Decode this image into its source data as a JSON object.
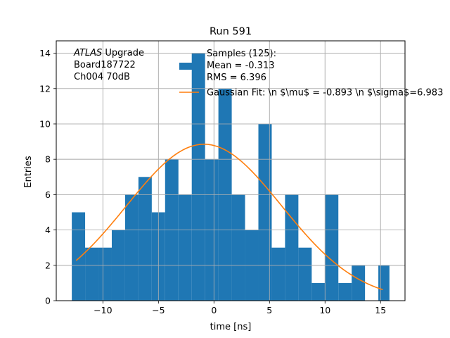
{
  "chart_data": {
    "type": "bar",
    "title": "Run 591",
    "xlabel": "time [ns]",
    "ylabel": "Entries",
    "xlim": [
      -14.2,
      17.2
    ],
    "ylim": [
      0,
      14.7
    ],
    "grid": true,
    "xticks": [
      -10,
      -5,
      0,
      5,
      10,
      15
    ],
    "yticks": [
      0,
      2,
      4,
      6,
      8,
      10,
      12,
      14
    ],
    "bins": {
      "edges": [
        -12.8,
        -11.6,
        -10.4,
        -9.2,
        -8.0,
        -6.8,
        -5.6,
        -4.4,
        -3.2,
        -2.0,
        -0.8,
        0.4,
        1.6,
        2.8,
        4.0,
        5.2,
        6.4,
        7.6,
        8.8,
        10.0,
        11.2,
        12.4,
        13.6,
        14.8,
        15.8
      ],
      "values": [
        5,
        3,
        3,
        4,
        6,
        7,
        5,
        8,
        6,
        14,
        8,
        12,
        6,
        4,
        10,
        3,
        6,
        3,
        1,
        6,
        1,
        2,
        0,
        2
      ],
      "color": "#1f77b4"
    },
    "series": [
      {
        "name": "Gaussian Fit: \\n $\\mu$ = -0.893 \\n $\\sigma$=6.983",
        "type": "line",
        "color": "#ff7f0e",
        "x_range": [
          -12.4,
          15.2
        ],
        "mu": -0.893,
        "sigma": 6.983,
        "amplitude": 8.85
      }
    ],
    "legend": {
      "placement": "top-right",
      "histogram_label": "Samples (125):\n Mean = -0.313\n RMS = 6.396"
    },
    "annotation": {
      "lines": [
        {
          "italic": "ATLAS",
          "text": " Upgrade"
        },
        {
          "italic": "",
          "text": " Board187722"
        },
        {
          "italic": "",
          "text": " Ch004 70dB"
        }
      ]
    }
  }
}
